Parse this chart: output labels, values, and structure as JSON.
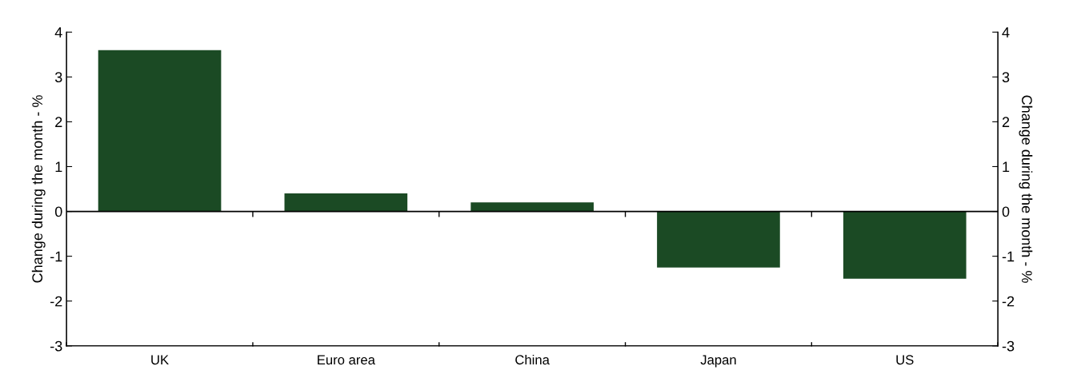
{
  "chart_data": {
    "type": "bar",
    "categories": [
      "UK",
      "Euro area",
      "China",
      "Japan",
      "US"
    ],
    "values": [
      3.6,
      0.4,
      0.2,
      -1.25,
      -1.5
    ],
    "color": "#1b4a24",
    "ylabel": "Change during the month - %",
    "y2label": "Change during the month - %",
    "ylim": [
      -3,
      4
    ],
    "yticks": [
      -3,
      -2,
      -1,
      0,
      1,
      2,
      3,
      4
    ],
    "y2lim": [
      -3,
      4
    ],
    "y2ticks": [
      -3,
      -2,
      -1,
      0,
      1,
      2,
      3,
      4
    ],
    "ref_lines": [
      {
        "axis": "y",
        "value": 0,
        "color": "#000000"
      }
    ],
    "grid": false,
    "legend": false
  }
}
